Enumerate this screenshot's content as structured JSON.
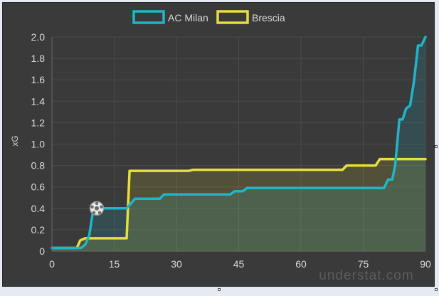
{
  "chart_data": {
    "type": "line",
    "title": "",
    "xlabel": "",
    "ylabel": "xG",
    "xlim": [
      0,
      90
    ],
    "ylim": [
      0,
      2.0
    ],
    "xticks": [
      "0",
      "15",
      "30",
      "45",
      "60",
      "75",
      "90"
    ],
    "yticks": [
      "0",
      "0.2",
      "0.4",
      "0.6",
      "0.8",
      "1.0",
      "1.2",
      "1.4",
      "1.6",
      "1.8",
      "2.0"
    ],
    "grid": true,
    "legend_position": "top",
    "series": [
      {
        "name": "AC Milan",
        "color": "#1fb6c9",
        "fill": "rgba(31,182,201,0.16)",
        "points": [
          [
            0,
            0.03
          ],
          [
            7,
            0.03
          ],
          [
            8,
            0.06
          ],
          [
            9,
            0.15
          ],
          [
            10,
            0.4
          ],
          [
            18,
            0.4
          ],
          [
            20,
            0.49
          ],
          [
            26,
            0.49
          ],
          [
            27,
            0.53
          ],
          [
            43,
            0.53
          ],
          [
            44,
            0.56
          ],
          [
            46,
            0.56
          ],
          [
            47,
            0.59
          ],
          [
            80,
            0.59
          ],
          [
            81,
            0.67
          ],
          [
            82,
            0.67
          ],
          [
            82.7,
            0.8
          ],
          [
            83.7,
            1.23
          ],
          [
            84.5,
            1.23
          ],
          [
            85.3,
            1.33
          ],
          [
            86.3,
            1.36
          ],
          [
            87.2,
            1.58
          ],
          [
            88.2,
            1.92
          ],
          [
            89,
            1.92
          ],
          [
            90,
            2.0
          ]
        ]
      },
      {
        "name": "Brescia",
        "color": "#e8df3c",
        "fill": "rgba(232,223,60,0.14)",
        "points": [
          [
            0,
            0.03
          ],
          [
            6,
            0.03
          ],
          [
            6.8,
            0.1
          ],
          [
            8,
            0.12
          ],
          [
            18,
            0.12
          ],
          [
            18.7,
            0.75
          ],
          [
            33,
            0.75
          ],
          [
            34,
            0.76
          ],
          [
            70,
            0.76
          ],
          [
            71,
            0.8
          ],
          [
            78,
            0.8
          ],
          [
            79,
            0.86
          ],
          [
            90,
            0.86
          ]
        ]
      }
    ],
    "annotations": [
      {
        "type": "goal-marker",
        "series": "AC Milan",
        "x": 10.8,
        "y": 0.4
      }
    ],
    "watermark": "understat.com"
  }
}
